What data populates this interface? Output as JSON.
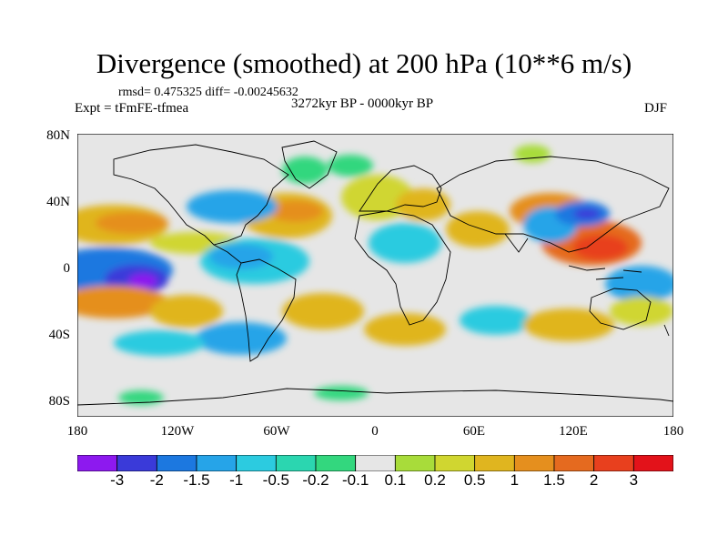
{
  "title": "Divergence (smoothed) at 200 hPa (10**6 m/s)",
  "stats": "rmsd= 0.475325 diff= -0.00245632",
  "period": "3272kyr BP - 0000kyr BP",
  "experiment": "Expt = tFmFE-tfmea",
  "season": "DJF",
  "lat_labels": [
    "80N",
    "40N",
    "0",
    "40S",
    "80S"
  ],
  "lon_labels": [
    "180",
    "120W",
    "60W",
    "0",
    "60E",
    "120E",
    "180"
  ],
  "colorbar": {
    "labels": [
      "-3",
      "-2",
      "-1.5",
      "-1",
      "-0.5",
      "-0.2",
      "-0.1",
      "0.1",
      "0.2",
      "0.5",
      "1",
      "1.5",
      "2",
      "3"
    ],
    "colors": [
      "#8d19ef",
      "#3a3ad9",
      "#1c78e0",
      "#26a4e8",
      "#2ccbe0",
      "#2bd6b0",
      "#33d77e",
      "#e6e6e6",
      "#a8dc3a",
      "#d0d630",
      "#e0b51f",
      "#e58f1e",
      "#e56a1f",
      "#e8401e",
      "#e3121a"
    ]
  },
  "colors": {
    "land_outline": "#000000",
    "background": "#e6e6e6"
  }
}
